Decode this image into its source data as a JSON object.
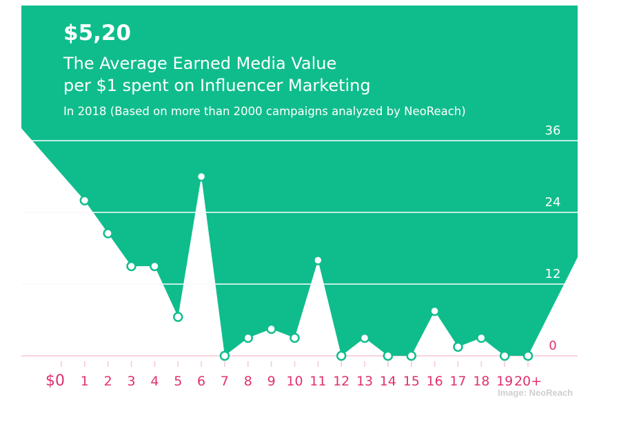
{
  "header": {
    "headline": "$5,20",
    "subtitle_line1": "The Average Earned Media Value",
    "subtitle_line2": "per $1 spent on Influencer Marketing",
    "note": "In 2018 (Based on more than 2000 campaigns analyzed by NeoReach)"
  },
  "credit": "Image: NeoReach",
  "colors": {
    "fill": "#0fbd8c",
    "axis_text": "#e0306f",
    "grid_below": "#f5c6d3",
    "grid_above": "#ffffff",
    "marker_stroke": "#0fbd8c"
  },
  "chart_data": {
    "type": "area",
    "x_ticks": [
      "$0",
      "1",
      "2",
      "3",
      "4",
      "5",
      "6",
      "7",
      "8",
      "9",
      "10",
      "11",
      "12",
      "13",
      "14",
      "15",
      "16",
      "17",
      "18",
      "19",
      "20+"
    ],
    "y_ticks": [
      0,
      12,
      24,
      36
    ],
    "ylim": [
      0,
      36
    ],
    "points": [
      {
        "x": "1",
        "y": 26
      },
      {
        "x": "2",
        "y": 20.5
      },
      {
        "x": "3",
        "y": 15
      },
      {
        "x": "4",
        "y": 15
      },
      {
        "x": "5",
        "y": 6.5
      },
      {
        "x": "6",
        "y": 30
      },
      {
        "x": "7",
        "y": 0
      },
      {
        "x": "8",
        "y": 3
      },
      {
        "x": "9",
        "y": 4.5
      },
      {
        "x": "10",
        "y": 3
      },
      {
        "x": "11",
        "y": 16
      },
      {
        "x": "12",
        "y": 0
      },
      {
        "x": "13",
        "y": 3
      },
      {
        "x": "14",
        "y": 0
      },
      {
        "x": "15",
        "y": 0
      },
      {
        "x": "16",
        "y": 7.5
      },
      {
        "x": "17",
        "y": 1.5
      },
      {
        "x": "18",
        "y": 3
      },
      {
        "x": "19",
        "y": 0
      },
      {
        "x": "20+",
        "y": 0
      }
    ],
    "grid": true
  }
}
